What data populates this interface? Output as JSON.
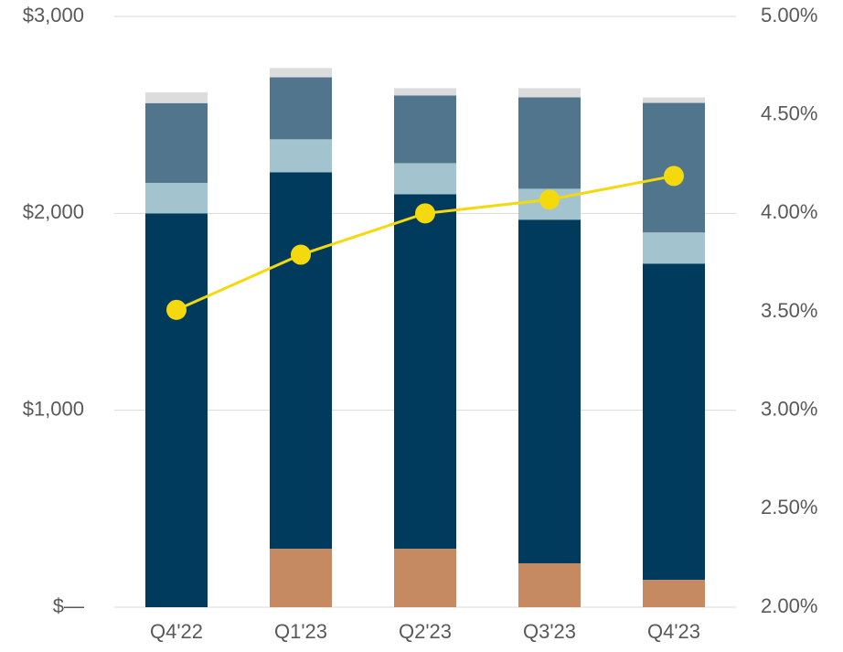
{
  "chart_data": {
    "type": "bar",
    "stacked": true,
    "categories": [
      "Q4'22",
      "Q1'23",
      "Q2'23",
      "Q3'23",
      "Q4'23"
    ],
    "series": [
      {
        "color": "#c68a62",
        "values": [
          0,
          297,
          297,
          223,
          139
        ]
      },
      {
        "color": "#003a5c",
        "values": [
          2000,
          1912,
          1800,
          1745,
          1606
        ]
      },
      {
        "color": "#a3c4cf",
        "values": [
          155,
          167,
          158,
          157,
          158
        ]
      },
      {
        "color": "#50758c",
        "values": [
          405,
          315,
          344,
          464,
          658
        ]
      },
      {
        "color": "#dcdcdc",
        "values": [
          55,
          47,
          37,
          47,
          28
        ]
      },
      {
        "type": "line",
        "axis": "y2",
        "color": "#f5d90f",
        "values": [
          3.51,
          3.79,
          4.0,
          4.07,
          4.19
        ]
      }
    ],
    "ylim": [
      0,
      3000
    ],
    "yticks": [
      {
        "value": 0,
        "label": "$—"
      },
      {
        "value": 1000,
        "label": "$1,000"
      },
      {
        "value": 2000,
        "label": "$2,000"
      },
      {
        "value": 3000,
        "label": "$3,000"
      }
    ],
    "y2lim": [
      2,
      5
    ],
    "y2ticks": [
      {
        "value": 2,
        "label": "2.00%"
      },
      {
        "value": 2.5,
        "label": "2.50%"
      },
      {
        "value": 3,
        "label": "3.00%"
      },
      {
        "value": 3.5,
        "label": "3.50%"
      },
      {
        "value": 4,
        "label": "4.00%"
      },
      {
        "value": 4.5,
        "label": "4.50%"
      },
      {
        "value": 5,
        "label": "5.00%"
      }
    ],
    "grid": true
  }
}
